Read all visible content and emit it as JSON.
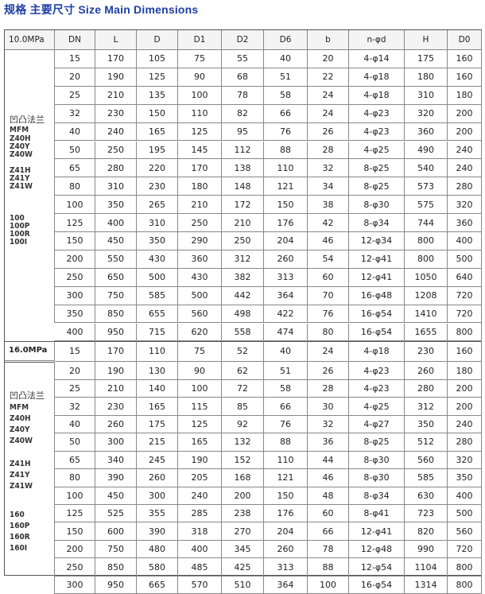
{
  "title": "规格  主要尺寸 Size Main Dimensions",
  "columns": [
    "DN",
    "L",
    "D",
    "D1",
    "D2",
    "D6",
    "b",
    "n-φd",
    "H",
    "D0"
  ],
  "sections": [
    {
      "pressure": "10.0MPa",
      "labels": [
        [
          "凹凸法兰",
          "MFM",
          "Z40H",
          "Z40Y",
          "Z40W"
        ],
        [
          "Z41H",
          "Z41Y",
          "Z41W"
        ],
        [
          "100",
          "100P",
          "100R",
          "100I"
        ]
      ],
      "rows": [
        [
          "15",
          "170",
          "105",
          "75",
          "55",
          "40",
          "20",
          "4-φ14",
          "175",
          "160"
        ],
        [
          "20",
          "190",
          "125",
          "90",
          "68",
          "51",
          "22",
          "4-φ18",
          "180",
          "160"
        ],
        [
          "25",
          "210",
          "135",
          "100",
          "78",
          "58",
          "24",
          "4-φ18",
          "310",
          "180"
        ],
        [
          "32",
          "230",
          "150",
          "110",
          "82",
          "66",
          "24",
          "4-φ23",
          "320",
          "200"
        ],
        [
          "40",
          "240",
          "165",
          "125",
          "95",
          "76",
          "26",
          "4-φ23",
          "360",
          "200"
        ],
        [
          "50",
          "250",
          "195",
          "145",
          "112",
          "88",
          "28",
          "4-φ25",
          "490",
          "240"
        ],
        [
          "65",
          "280",
          "220",
          "170",
          "138",
          "110",
          "32",
          "8-φ25",
          "540",
          "240"
        ],
        [
          "80",
          "310",
          "230",
          "180",
          "148",
          "121",
          "34",
          "8-φ25",
          "573",
          "280"
        ],
        [
          "100",
          "350",
          "265",
          "210",
          "172",
          "150",
          "38",
          "8-φ30",
          "575",
          "320"
        ],
        [
          "125",
          "400",
          "310",
          "250",
          "210",
          "176",
          "42",
          "8-φ34",
          "744",
          "360"
        ],
        [
          "150",
          "450",
          "350",
          "290",
          "250",
          "204",
          "46",
          "12-φ34",
          "800",
          "400"
        ],
        [
          "200",
          "550",
          "430",
          "360",
          "312",
          "260",
          "54",
          "12-φ41",
          "800",
          "500"
        ],
        [
          "250",
          "650",
          "500",
          "430",
          "382",
          "313",
          "60",
          "12-φ41",
          "1050",
          "640"
        ],
        [
          "300",
          "750",
          "585",
          "500",
          "442",
          "364",
          "70",
          "16-φ48",
          "1208",
          "720"
        ],
        [
          "350",
          "850",
          "655",
          "560",
          "498",
          "422",
          "76",
          "16-φ54",
          "1410",
          "720"
        ],
        [
          "400",
          "950",
          "715",
          "620",
          "558",
          "474",
          "80",
          "16-φ54",
          "1655",
          "800"
        ]
      ]
    },
    {
      "pressure": "16.0MPa",
      "labels": [
        [
          "凹凸法兰",
          "MFM",
          "Z40H",
          "Z40Y",
          "Z40W"
        ],
        [
          "Z41H",
          "Z41Y",
          "Z41W"
        ],
        [
          "160",
          "160P",
          "160R",
          "160I"
        ]
      ],
      "rows": [
        [
          "15",
          "170",
          "110",
          "75",
          "52",
          "40",
          "24",
          "4-φ18",
          "230",
          "160"
        ],
        [
          "20",
          "190",
          "130",
          "90",
          "62",
          "51",
          "26",
          "4-φ23",
          "260",
          "180"
        ],
        [
          "25",
          "210",
          "140",
          "100",
          "72",
          "58",
          "28",
          "4-φ23",
          "280",
          "200"
        ],
        [
          "32",
          "230",
          "165",
          "115",
          "85",
          "66",
          "30",
          "4-φ25",
          "312",
          "200"
        ],
        [
          "40",
          "260",
          "175",
          "125",
          "92",
          "76",
          "32",
          "4-φ27",
          "350",
          "240"
        ],
        [
          "50",
          "300",
          "215",
          "165",
          "132",
          "88",
          "36",
          "8-φ25",
          "512",
          "280"
        ],
        [
          "65",
          "340",
          "245",
          "190",
          "152",
          "110",
          "44",
          "8-φ30",
          "560",
          "320"
        ],
        [
          "80",
          "390",
          "260",
          "205",
          "168",
          "121",
          "46",
          "8-φ30",
          "585",
          "350"
        ],
        [
          "100",
          "450",
          "300",
          "240",
          "200",
          "150",
          "48",
          "8-φ34",
          "630",
          "400"
        ],
        [
          "125",
          "525",
          "355",
          "285",
          "238",
          "176",
          "60",
          "8-φ41",
          "723",
          "500"
        ],
        [
          "150",
          "600",
          "390",
          "318",
          "270",
          "204",
          "66",
          "12-φ41",
          "820",
          "560"
        ],
        [
          "200",
          "750",
          "480",
          "400",
          "345",
          "260",
          "78",
          "12-φ48",
          "990",
          "720"
        ],
        [
          "250",
          "850",
          "580",
          "485",
          "425",
          "313",
          "88",
          "12-φ54",
          "1104",
          "800"
        ],
        [
          "300",
          "950",
          "665",
          "570",
          "510",
          "364",
          "100",
          "16-φ54",
          "1314",
          "800"
        ]
      ]
    }
  ]
}
